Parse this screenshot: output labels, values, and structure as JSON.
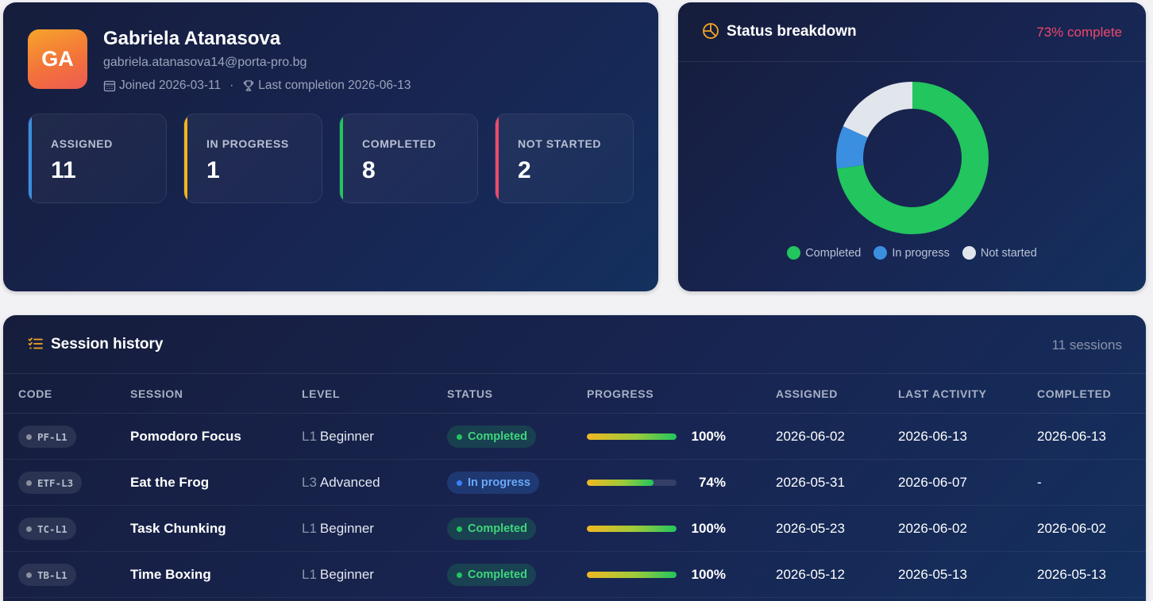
{
  "profile": {
    "initials": "GA",
    "name": "Gabriela Atanasova",
    "email": "gabriela.atanasova14@porta-pro.bg",
    "joined": "Joined 2026-03-11",
    "separator": "·",
    "last_completion": "Last completion 2026-06-13",
    "stats": [
      {
        "label": "ASSIGNED",
        "value": "11",
        "color": "#3b8fe0"
      },
      {
        "label": "IN PROGRESS",
        "value": "1",
        "color": "#f2b51c"
      },
      {
        "label": "COMPLETED",
        "value": "8",
        "color": "#22c55e"
      },
      {
        "label": "NOT STARTED",
        "value": "2",
        "color": "#ef4a6b"
      }
    ]
  },
  "status": {
    "title": "Status breakdown",
    "complete_text": "73% complete",
    "legend": [
      {
        "label": "Completed",
        "color": "#22c55e"
      },
      {
        "label": "In progress",
        "color": "#3b8fe0"
      },
      {
        "label": "Not started",
        "color": "#e1e5ec"
      }
    ]
  },
  "chart_data": {
    "type": "pie",
    "style": "donut",
    "categories": [
      "Completed",
      "In progress",
      "Not started"
    ],
    "values": [
      8,
      1,
      2
    ],
    "colors": [
      "#22c55e",
      "#3b8fe0",
      "#e1e5ec"
    ],
    "legend_position": "bottom"
  },
  "sessions": {
    "title": "Session history",
    "count_text": "11 sessions",
    "columns": [
      "CODE",
      "SESSION",
      "LEVEL",
      "STATUS",
      "PROGRESS",
      "ASSIGNED",
      "LAST ACTIVITY",
      "COMPLETED"
    ],
    "rows": [
      {
        "code": "PF-L1",
        "name": "Pomodoro Focus",
        "level_code": "L1",
        "level_name": "Beginner",
        "status": "Completed",
        "status_kind": "completed",
        "progress": 100,
        "progress_text": "100%",
        "assigned": "2026-06-02",
        "last_activity": "2026-06-13",
        "completed": "2026-06-13"
      },
      {
        "code": "ETF-L3",
        "name": "Eat the Frog",
        "level_code": "L3",
        "level_name": "Advanced",
        "status": "In progress",
        "status_kind": "inprogress",
        "progress": 74,
        "progress_text": "74%",
        "assigned": "2026-05-31",
        "last_activity": "2026-06-07",
        "completed": "-"
      },
      {
        "code": "TC-L1",
        "name": "Task Chunking",
        "level_code": "L1",
        "level_name": "Beginner",
        "status": "Completed",
        "status_kind": "completed",
        "progress": 100,
        "progress_text": "100%",
        "assigned": "2026-05-23",
        "last_activity": "2026-06-02",
        "completed": "2026-06-02"
      },
      {
        "code": "TB-L1",
        "name": "Time Boxing",
        "level_code": "L1",
        "level_name": "Beginner",
        "status": "Completed",
        "status_kind": "completed",
        "progress": 100,
        "progress_text": "100%",
        "assigned": "2026-05-12",
        "last_activity": "2026-05-13",
        "completed": "2026-05-13"
      }
    ]
  }
}
